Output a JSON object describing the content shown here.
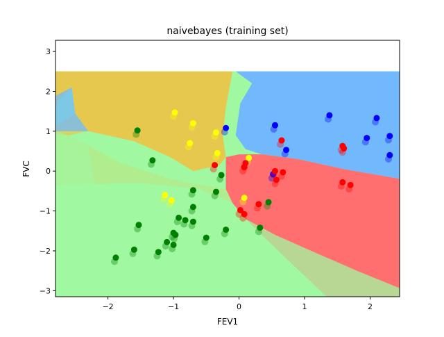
{
  "chart_data": {
    "type": "scatter",
    "title": "naivebayes (training set)",
    "xlabel": "FEV1",
    "ylabel": "FVC",
    "xlim": [
      -2.8,
      2.45
    ],
    "ylim": [
      -3.15,
      3.28
    ],
    "decision_region_ymax": 2.5,
    "x_ticks": [
      -2,
      -1,
      0,
      1,
      2
    ],
    "y_ticks": [
      -3,
      -2,
      -1,
      0,
      1,
      2,
      3
    ],
    "x_tick_labels": [
      "−2",
      "−1",
      "0",
      "1",
      "2"
    ],
    "y_tick_labels": [
      "−3",
      "−2",
      "−1",
      "0",
      "1",
      "2",
      "3"
    ],
    "grid": false,
    "classes": [
      {
        "key": "green",
        "point_color": "#008000",
        "region_color": "#a0f8a0"
      },
      {
        "key": "yellow",
        "point_color": "#ffff00",
        "region_color": "#e6c84e"
      },
      {
        "key": "blue",
        "point_color": "#0000ff",
        "region_color": "#72b8fc"
      },
      {
        "key": "red",
        "point_color": "#ff0000",
        "region_color": "#ff6f6f"
      }
    ],
    "series": [
      {
        "class": "green",
        "points": [
          [
            -1.88,
            -2.17
          ],
          [
            -1.6,
            -1.97
          ],
          [
            -1.53,
            -1.35
          ],
          [
            -1.55,
            1.02
          ],
          [
            -1.32,
            0.27
          ],
          [
            -1.23,
            -2.03
          ],
          [
            -1.1,
            -1.78
          ],
          [
            -1.0,
            -1.55
          ],
          [
            -0.97,
            -1.6
          ],
          [
            -1.0,
            -1.85
          ],
          [
            -0.92,
            -1.17
          ],
          [
            -0.82,
            -1.23
          ],
          [
            -0.7,
            -1.27
          ],
          [
            -0.7,
            -0.9
          ],
          [
            -0.7,
            -0.48
          ],
          [
            -0.5,
            -1.67
          ],
          [
            -0.35,
            -0.52
          ],
          [
            -0.27,
            -0.1
          ],
          [
            -0.2,
            -1.47
          ],
          [
            0.32,
            -1.42
          ],
          [
            0.45,
            -0.78
          ]
        ]
      },
      {
        "class": "yellow",
        "points": [
          [
            -0.98,
            1.47
          ],
          [
            -0.7,
            1.2
          ],
          [
            -0.75,
            0.7
          ],
          [
            -0.35,
            0.97
          ],
          [
            -0.33,
            0.45
          ],
          [
            -1.13,
            -0.6
          ],
          [
            -1.03,
            -0.73
          ],
          [
            0.08,
            -0.67
          ],
          [
            0.15,
            0.33
          ]
        ]
      },
      {
        "class": "blue",
        "points": [
          [
            -0.2,
            1.08
          ],
          [
            0.55,
            1.15
          ],
          [
            0.72,
            0.53
          ],
          [
            1.38,
            1.4
          ],
          [
            2.1,
            1.33
          ],
          [
            1.95,
            0.83
          ],
          [
            2.3,
            0.88
          ],
          [
            2.3,
            0.4
          ],
          [
            0.52,
            -0.08
          ]
        ]
      },
      {
        "class": "red",
        "points": [
          [
            -0.37,
            0.15
          ],
          [
            0.08,
            0.1
          ],
          [
            0.1,
            0.2
          ],
          [
            0.65,
            0.77
          ],
          [
            0.55,
            0.0
          ],
          [
            0.57,
            -0.22
          ],
          [
            0.67,
            -0.03
          ],
          [
            1.58,
            0.63
          ],
          [
            1.6,
            0.57
          ],
          [
            1.58,
            -0.28
          ],
          [
            1.7,
            -0.35
          ],
          [
            0.02,
            -0.98
          ],
          [
            0.08,
            -1.08
          ],
          [
            0.3,
            -0.83
          ]
        ]
      }
    ]
  }
}
